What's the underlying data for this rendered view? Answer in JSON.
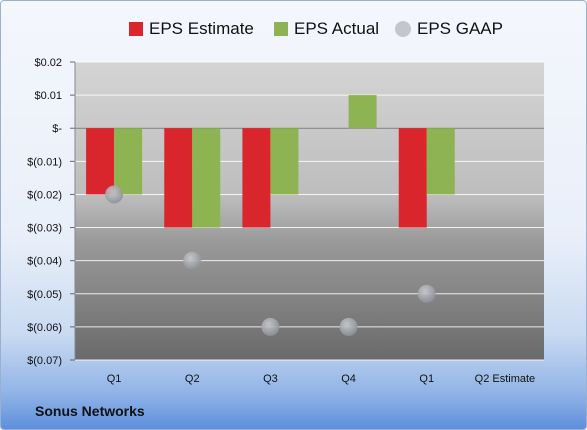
{
  "company": "Sonus Networks",
  "chart_data": {
    "type": "bar",
    "categories": [
      "Q1",
      "Q2",
      "Q3",
      "Q4",
      "Q1",
      "Q2 Estimate"
    ],
    "ylim": [
      -0.07,
      0.02
    ],
    "yticks": [
      0.02,
      0.01,
      0,
      -0.01,
      -0.02,
      -0.03,
      -0.04,
      -0.05,
      -0.06,
      -0.07
    ],
    "ytick_labels": [
      "$0.02",
      "$0.01",
      "$-",
      "$(0.01)",
      "$(0.02)",
      "$(0.03)",
      "$(0.04)",
      "$(0.05)",
      "$(0.06)",
      "$(0.07)"
    ],
    "grid": true,
    "legend_position": "top",
    "series": [
      {
        "name": "EPS Estimate",
        "kind": "bar",
        "color": "#d9262c",
        "values": [
          -0.02,
          -0.03,
          -0.03,
          null,
          -0.03,
          null
        ]
      },
      {
        "name": "EPS Actual",
        "kind": "bar",
        "color": "#8db352",
        "values": [
          -0.02,
          -0.03,
          -0.02,
          0.01,
          -0.02,
          null
        ]
      },
      {
        "name": "EPS GAAP",
        "kind": "marker",
        "color": "#b9bcc2",
        "values": [
          -0.02,
          -0.04,
          -0.06,
          -0.06,
          -0.05,
          null
        ]
      }
    ]
  }
}
